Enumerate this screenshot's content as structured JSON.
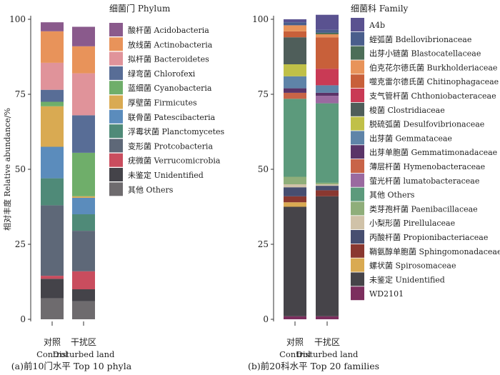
{
  "chart_data": [
    {
      "type": "bar",
      "stacked": true,
      "title": "",
      "caption": "(a)前10门水平 Top 10 phyla",
      "ylabel": "相对丰度 Relative abundance/%",
      "ylim": [
        0,
        100
      ],
      "yticks": [
        0,
        25,
        50,
        75,
        100
      ],
      "categories": [
        {
          "cn": "对照",
          "en": "Control"
        },
        {
          "cn": "干扰区",
          "en": "Disturbed land"
        }
      ],
      "legend_title": "细菌门 Phylum",
      "legend_position": "right",
      "series": [
        {
          "name": "酸杆菌 Acidobacteria",
          "color": "#8a5a8c",
          "values": [
            3,
            6.5
          ]
        },
        {
          "name": "放线菌 Actinobacteria",
          "color": "#e8935a",
          "values": [
            10.5,
            9
          ]
        },
        {
          "name": "拟杆菌 Bacteroidetes",
          "color": "#e0939a",
          "values": [
            9,
            14
          ]
        },
        {
          "name": "绿弯菌 Chlorofexi",
          "color": "#586d96",
          "values": [
            4,
            12.5
          ]
        },
        {
          "name": "蓝细菌 Cyanobacteria",
          "color": "#6fae6a",
          "values": [
            1.5,
            14.5
          ]
        },
        {
          "name": "厚壁菌 Firmicutes",
          "color": "#d9aa52",
          "values": [
            13.5,
            0.5
          ]
        },
        {
          "name": "联骨菌 Patescibacteria",
          "color": "#5b8cbc",
          "values": [
            10.5,
            5.5
          ]
        },
        {
          "name": "浮霉状菌 Planctomycetes",
          "color": "#4f8a78",
          "values": [
            9,
            5.5
          ]
        },
        {
          "name": "变形菌 Protcobacteria",
          "color": "#5e6878",
          "values": [
            23.5,
            13.5
          ]
        },
        {
          "name": "疣微菌 Verrucomicrobia",
          "color": "#c94d5e",
          "values": [
            1,
            6
          ]
        },
        {
          "name": "未鉴定 Unidentified",
          "color": "#444349",
          "values": [
            6.5,
            4
          ]
        },
        {
          "name": "其他 Others",
          "color": "#6e6b6e",
          "values": [
            7,
            6
          ]
        }
      ]
    },
    {
      "type": "bar",
      "stacked": true,
      "title": "",
      "caption": "(b)前20科水平 Top 20 families",
      "ylabel": "",
      "ylim": [
        0,
        100
      ],
      "yticks": [
        0,
        25,
        50,
        75,
        100
      ],
      "categories": [
        {
          "cn": "对照",
          "en": "Control"
        },
        {
          "cn": "干扰区",
          "en": "Disturbed land"
        }
      ],
      "legend_title": "细菌科 Family",
      "legend_position": "right",
      "series": [
        {
          "name": "A4b",
          "color": "#5a5290",
          "values": [
            1,
            5
          ]
        },
        {
          "name": "蛭弧菌 Bdellovibrionaceae",
          "color": "#4a5e8c",
          "values": [
            1,
            1
          ]
        },
        {
          "name": "出芽小链菌 Blastocatellaceae",
          "color": "#4c6e58",
          "values": [
            0,
            0.5
          ]
        },
        {
          "name": "伯克花尔德氏菌 Burkholderiaceae",
          "color": "#e8935a",
          "values": [
            2,
            1
          ]
        },
        {
          "name": "噬克雷尔德氏菌 Chitinophagaceae",
          "color": "#c8603a",
          "values": [
            2,
            10.5
          ]
        },
        {
          "name": "支气管杆菌 Chthoniobacteraceae",
          "color": "#c93a55",
          "values": [
            0,
            5.5
          ]
        },
        {
          "name": "梭菌 Clostridiaceae",
          "color": "#4f5e5a",
          "values": [
            9,
            0
          ]
        },
        {
          "name": "脱硫弧菌 Desulfovibrionaceae",
          "color": "#c0c048",
          "values": [
            4,
            0
          ]
        },
        {
          "name": "出芽菌 Gemmataceae",
          "color": "#5f84a8",
          "values": [
            4,
            2.5
          ]
        },
        {
          "name": "出芽单胞菌 Gemmatimonadaceae",
          "color": "#5a3468",
          "values": [
            1.5,
            1
          ]
        },
        {
          "name": "薄层杆菌 Hymenobacteraceae",
          "color": "#c86448",
          "values": [
            2,
            0
          ]
        },
        {
          "name": "萤光杆菌 lumatobacteraceae",
          "color": "#9a6aa0",
          "values": [
            0,
            2.5
          ]
        },
        {
          "name": "其他 Others",
          "color": "#5c9a7c",
          "values": [
            26,
            26.5
          ]
        },
        {
          "name": "类芽孢杆菌 Paenibacillaceae",
          "color": "#8fae7a",
          "values": [
            2.5,
            0.5
          ]
        },
        {
          "name": "小梨形菌 Pirellulaceae",
          "color": "#d0c2a8",
          "values": [
            1,
            0.5
          ]
        },
        {
          "name": "丙酸杆菌 Propionibacteriaceae",
          "color": "#474e70",
          "values": [
            3,
            1.5
          ]
        },
        {
          "name": "鞘氨醇单胞菌 Sphingomonadaceae",
          "color": "#8a3830",
          "values": [
            2,
            2
          ]
        },
        {
          "name": "螺状菌 Spirosomaceae",
          "color": "#d9aa52",
          "values": [
            1.5,
            0
          ]
        },
        {
          "name": "未鉴定 Unidentified",
          "color": "#464449",
          "values": [
            36.5,
            40
          ]
        },
        {
          "name": "WD2101",
          "color": "#7c2e5e",
          "values": [
            1,
            1
          ]
        }
      ]
    }
  ]
}
